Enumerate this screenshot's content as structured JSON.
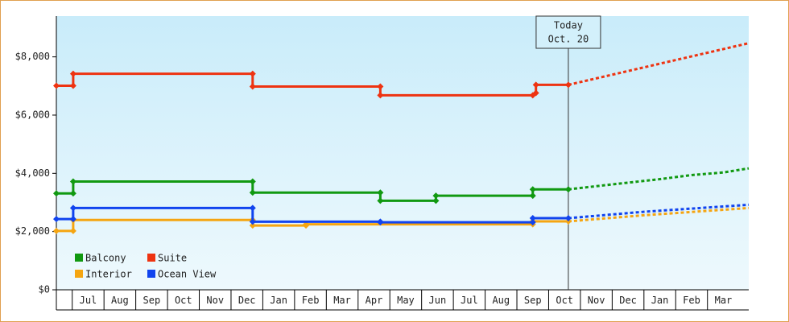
{
  "chart_data": {
    "type": "step-line",
    "xlim": [
      0.5,
      22.3
    ],
    "xticks": [
      {
        "value": 1,
        "label": "Jul"
      },
      {
        "value": 2,
        "label": "Aug"
      },
      {
        "value": 3,
        "label": "Sep"
      },
      {
        "value": 4,
        "label": "Oct"
      },
      {
        "value": 5,
        "label": "Nov"
      },
      {
        "value": 6,
        "label": "Dec"
      },
      {
        "value": 7,
        "label": "Jan"
      },
      {
        "value": 8,
        "label": "Feb"
      },
      {
        "value": 9,
        "label": "Mar"
      },
      {
        "value": 10,
        "label": "Apr"
      },
      {
        "value": 11,
        "label": "May"
      },
      {
        "value": 12,
        "label": "Jun"
      },
      {
        "value": 13,
        "label": "Jul"
      },
      {
        "value": 14,
        "label": "Aug"
      },
      {
        "value": 15,
        "label": "Sep"
      },
      {
        "value": 16,
        "label": "Oct"
      },
      {
        "value": 17,
        "label": "Nov"
      },
      {
        "value": 18,
        "label": "Dec"
      },
      {
        "value": 19,
        "label": "Jan"
      },
      {
        "value": 20,
        "label": "Feb"
      },
      {
        "value": 21,
        "label": "Mar"
      }
    ],
    "ylim": [
      0,
      9400
    ],
    "yticks": [
      {
        "value": 0,
        "label": "$0"
      },
      {
        "value": 2000,
        "label": "$2,000"
      },
      {
        "value": 4000,
        "label": "$4,000"
      },
      {
        "value": 6000,
        "label": "$6,000"
      },
      {
        "value": 8000,
        "label": "$8,000"
      }
    ],
    "annotation": {
      "x": 16.62,
      "lines": [
        "Today",
        "Oct. 20"
      ]
    },
    "legend": "lower left",
    "series": [
      {
        "name": "Balcony",
        "color": "#119911",
        "x": [
          0.5,
          1.03,
          1.03,
          6.68,
          6.68,
          10.7,
          10.7,
          12.45,
          12.45,
          15.5,
          15.5,
          16.62
        ],
        "values": [
          3310,
          3310,
          3720,
          3720,
          3340,
          3340,
          3060,
          3060,
          3230,
          3230,
          3450,
          3450
        ],
        "forecast_x": [
          16.62,
          18,
          19.5,
          20.5,
          21.5,
          22.3
        ],
        "forecast_values": [
          3450,
          3620,
          3800,
          3940,
          4030,
          4170
        ]
      },
      {
        "name": "Suite",
        "color": "#ee3311",
        "x": [
          0.5,
          1.03,
          1.03,
          6.68,
          6.68,
          10.7,
          10.7,
          15.5,
          15.6,
          15.6,
          16.62
        ],
        "values": [
          7010,
          7010,
          7420,
          7420,
          6980,
          6980,
          6680,
          6680,
          6760,
          7040,
          7040
        ],
        "forecast_x": [
          16.62,
          22.3
        ],
        "forecast_values": [
          7040,
          8470
        ]
      },
      {
        "name": "Interior",
        "color": "#f5a511",
        "x": [
          0.5,
          1.03,
          1.03,
          6.68,
          6.68,
          8.36,
          8.36,
          15.5,
          15.5,
          16.62
        ],
        "values": [
          2020,
          2020,
          2400,
          2400,
          2210,
          2210,
          2250,
          2250,
          2350,
          2350
        ],
        "forecast_x": [
          16.62,
          19,
          22.3
        ],
        "forecast_values": [
          2350,
          2560,
          2810
        ]
      },
      {
        "name": "Ocean View",
        "color": "#1144ee",
        "x": [
          0.5,
          1.03,
          1.03,
          6.68,
          6.68,
          10.7,
          10.7,
          15.5,
          15.5,
          16.62
        ],
        "values": [
          2430,
          2430,
          2810,
          2810,
          2340,
          2340,
          2320,
          2320,
          2460,
          2460
        ],
        "forecast_x": [
          16.62,
          19,
          22.3
        ],
        "forecast_values": [
          2460,
          2680,
          2920
        ]
      }
    ]
  }
}
